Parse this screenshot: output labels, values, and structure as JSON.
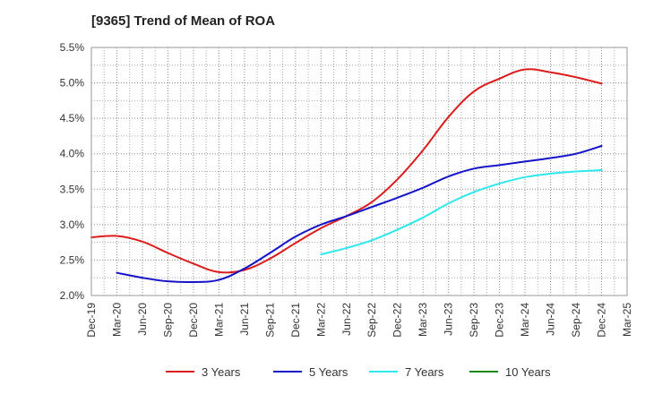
{
  "chart_data": {
    "type": "line",
    "title": "[9365]  Trend of Mean of ROA",
    "xlabel": "",
    "ylabel": "",
    "ylim": [
      2.0,
      5.5
    ],
    "yticks": [
      {
        "value": 2.0,
        "label": "2.0%"
      },
      {
        "value": 2.5,
        "label": "2.5%"
      },
      {
        "value": 3.0,
        "label": "3.0%"
      },
      {
        "value": 3.5,
        "label": "3.5%"
      },
      {
        "value": 4.0,
        "label": "4.0%"
      },
      {
        "value": 4.5,
        "label": "4.5%"
      },
      {
        "value": 5.0,
        "label": "5.0%"
      },
      {
        "value": 5.5,
        "label": "5.5%"
      }
    ],
    "categories": [
      "Dec-19",
      "Mar-20",
      "Jun-20",
      "Sep-20",
      "Dec-20",
      "Mar-21",
      "Jun-21",
      "Sep-21",
      "Dec-21",
      "Mar-22",
      "Jun-22",
      "Sep-22",
      "Dec-22",
      "Mar-23",
      "Jun-23",
      "Sep-23",
      "Dec-23",
      "Mar-24",
      "Jun-24",
      "Sep-24",
      "Dec-24",
      "Mar-25"
    ],
    "grid": true,
    "legend_position": "bottom",
    "series": [
      {
        "name": "3 Years",
        "color": "#dd1c1c",
        "values": [
          2.82,
          2.84,
          2.76,
          2.6,
          2.45,
          2.33,
          2.36,
          2.52,
          2.74,
          2.95,
          3.12,
          3.32,
          3.64,
          4.05,
          4.52,
          4.88,
          5.06,
          5.19,
          5.15,
          5.08,
          4.99,
          null
        ]
      },
      {
        "name": "5 Years",
        "color": "#1414c8",
        "values": [
          null,
          2.32,
          2.25,
          2.2,
          2.19,
          2.22,
          2.38,
          2.6,
          2.83,
          3.0,
          3.12,
          3.25,
          3.38,
          3.52,
          3.68,
          3.79,
          3.84,
          3.89,
          3.94,
          4.0,
          4.11,
          null
        ]
      },
      {
        "name": "7 Years",
        "color": "#2ee8ee",
        "values": [
          null,
          null,
          null,
          null,
          null,
          null,
          null,
          null,
          null,
          2.58,
          2.67,
          2.78,
          2.93,
          3.1,
          3.3,
          3.46,
          3.58,
          3.67,
          3.72,
          3.75,
          3.77,
          null
        ]
      },
      {
        "name": "10 Years",
        "color": "#1a8a1a",
        "values": [
          null,
          null,
          null,
          null,
          null,
          null,
          null,
          null,
          null,
          null,
          null,
          null,
          null,
          null,
          null,
          null,
          null,
          null,
          null,
          null,
          null,
          null
        ]
      }
    ]
  }
}
